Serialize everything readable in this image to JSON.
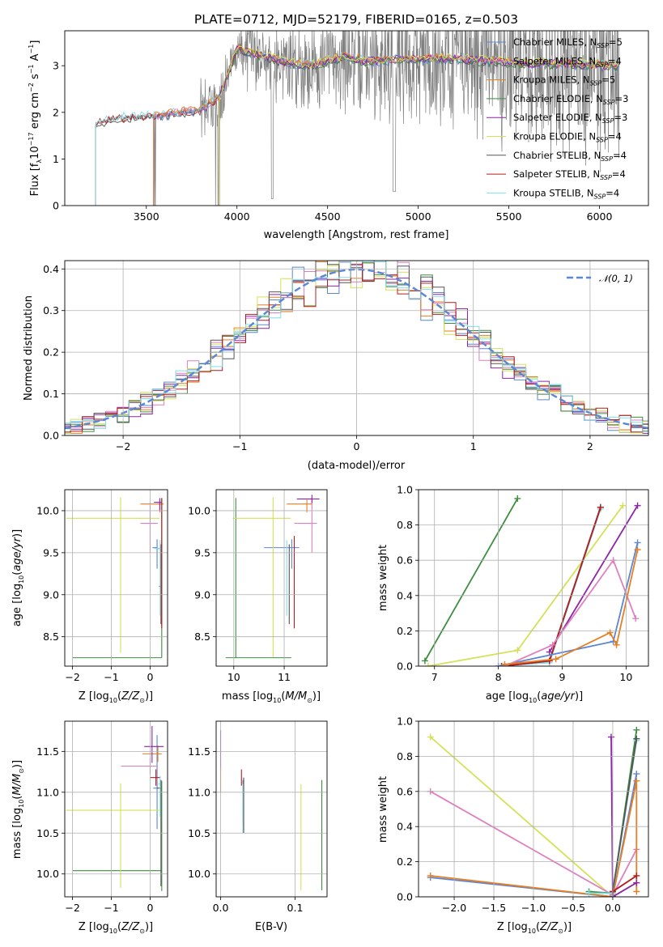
{
  "figure_title": "PLATE=0712, MJD=52179, FIBERID=0165, z=0.503",
  "colors": {
    "Chabrier MILES": "#5b86d6",
    "Salpeter MILES": "#df7fbf",
    "Kroupa MILES": "#e67e22",
    "Chabrier ELODIE": "#3e8e41",
    "Salpeter ELODIE": "#8e24aa",
    "Kroupa ELODIE": "#d4e157",
    "Chabrier STELIB": "#555555",
    "Salpeter STELIB": "#b71c1c",
    "Kroupa STELIB": "#80deea",
    "observed": "#808080",
    "normal": "#5b86d6"
  },
  "chart_data": [
    {
      "id": "spectrum",
      "type": "line",
      "title": "PLATE=0712, MJD=52179, FIBERID=0165, z=0.503",
      "xlabel": "wavelength [Angstrom, rest frame]",
      "ylabel": "Flux [f_λ 10^-17 erg cm^-2 s^-1 A^-1]",
      "xlim": [
        3050,
        6270
      ],
      "ylim": [
        0,
        3.75
      ],
      "xticks": [
        3500,
        4000,
        4500,
        5000,
        5500,
        6000
      ],
      "yticks": [
        0,
        1,
        2,
        3
      ],
      "legend_position": "upper right",
      "grid": false,
      "legend": [
        {
          "name": "Chabrier MILES",
          "nssp": 5
        },
        {
          "name": "Salpeter MILES",
          "nssp": 4
        },
        {
          "name": "Kroupa MILES",
          "nssp": 5
        },
        {
          "name": "Chabrier ELODIE",
          "nssp": 3
        },
        {
          "name": "Salpeter ELODIE",
          "nssp": 3
        },
        {
          "name": "Kroupa ELODIE",
          "nssp": 4
        },
        {
          "name": "Chabrier STELIB",
          "nssp": 4
        },
        {
          "name": "Salpeter STELIB",
          "nssp": 4
        },
        {
          "name": "Kroupa STELIB",
          "nssp": 4
        }
      ],
      "legend_suffix": "N_SSP=",
      "continuum": {
        "x": [
          3220,
          3300,
          3400,
          3500,
          3600,
          3700,
          3800,
          3900,
          4000,
          4100,
          4200,
          4300,
          4400,
          4500,
          4600,
          4700,
          4800,
          4900,
          5000,
          5200,
          5400,
          5600,
          5800,
          6000,
          6100
        ],
        "y": [
          1.75,
          1.85,
          1.9,
          1.9,
          1.95,
          2.0,
          2.05,
          2.3,
          3.35,
          3.25,
          3.15,
          3.05,
          3.0,
          3.1,
          3.2,
          3.1,
          3.1,
          3.15,
          3.15,
          3.15,
          3.1,
          3.05,
          3.05,
          3.0,
          3.0
        ]
      },
      "model_starts": {
        "Chabrier MILES": 3540,
        "Salpeter MILES": 3540,
        "Kroupa MILES": 3540,
        "Chabrier ELODIE": 3905,
        "Salpeter ELODIE": 3905,
        "Kroupa ELODIE": 3905,
        "Chabrier STELIB": 3220,
        "Salpeter STELIB": 3220,
        "Kroupa STELIB": 3220
      }
    },
    {
      "id": "residuals",
      "type": "histogram",
      "xlabel": "(data-model)/error",
      "ylabel": "Normed distribution",
      "xlim": [
        -2.5,
        2.5
      ],
      "ylim": [
        0,
        0.42
      ],
      "xticks": [
        -2,
        -1,
        0,
        1,
        2
      ],
      "yticks": [
        0.0,
        0.1,
        0.2,
        0.3,
        0.4
      ],
      "grid": true,
      "bin_width": 0.1,
      "reference": {
        "label": "𝒩(0, 1)",
        "mean": 0,
        "sigma": 1
      },
      "legend_position": "upper right"
    },
    {
      "id": "age_vs_Z",
      "type": "errorbar",
      "xlabel": "Z [log10(Z/Z⊙)]",
      "ylabel": "age [log10(age/yr)]",
      "xlim": [
        -2.2,
        0.45
      ],
      "ylim": [
        8.15,
        10.25
      ],
      "xticks": [
        -2,
        -1,
        0
      ],
      "yticks": [
        8.5,
        9.0,
        9.5,
        10.0
      ],
      "grid": true,
      "points": [
        {
          "model": "Chabrier MILES",
          "x": 0.18,
          "y": 9.56,
          "xerr": [
            0.12,
            0.0
          ],
          "yerr": [
            0.25,
            0.1
          ]
        },
        {
          "model": "Salpeter MILES",
          "x": 0.0,
          "y": 9.85,
          "xerr": [
            0.25,
            0.2
          ],
          "yerr": [
            0.35,
            0.25
          ]
        },
        {
          "model": "Kroupa MILES",
          "x": 0.25,
          "y": 10.08,
          "xerr": [
            0.5,
            0.1
          ],
          "yerr": [
            0.1,
            0.05
          ]
        },
        {
          "model": "Chabrier ELODIE",
          "x": 0.3,
          "y": 8.25,
          "xerr": [
            2.3,
            0.0
          ],
          "yerr": [
            0.0,
            1.9
          ]
        },
        {
          "model": "Salpeter ELODIE",
          "x": 0.25,
          "y": 10.1,
          "xerr": [
            0.15,
            0.05
          ],
          "yerr": [
            0.1,
            0.05
          ]
        },
        {
          "model": "Kroupa ELODIE",
          "x": -0.76,
          "y": 9.91,
          "xerr": [
            1.4,
            1.0
          ],
          "yerr": [
            1.6,
            0.25
          ]
        },
        {
          "model": "Chabrier STELIB",
          "x": 0.28,
          "y": 9.1,
          "xerr": [
            0.05,
            0.0
          ],
          "yerr": [
            0.45,
            0.5
          ]
        },
        {
          "model": "Salpeter STELIB",
          "x": 0.3,
          "y": 9.55,
          "xerr": [
            0.1,
            0.0
          ],
          "yerr": [
            0.95,
            0.6
          ]
        },
        {
          "model": "Kroupa STELIB",
          "x": 0.26,
          "y": 9.55,
          "xerr": [
            0.15,
            0.02
          ],
          "yerr": [
            0.8,
            0.1
          ]
        }
      ]
    },
    {
      "id": "age_vs_mass",
      "type": "errorbar",
      "xlabel": "mass [log10(M/M⊙)]",
      "ylabel": "",
      "xlim": [
        9.65,
        11.85
      ],
      "ylim": [
        8.15,
        10.25
      ],
      "xticks": [
        10,
        11
      ],
      "yticks": [
        8.5,
        9.0,
        9.5,
        10.0
      ],
      "grid": true,
      "points": [
        {
          "model": "Chabrier MILES",
          "x": 11.15,
          "y": 9.56,
          "xerr": [
            0.55,
            0.15
          ],
          "yerr": [
            0.25,
            0.1
          ]
        },
        {
          "model": "Salpeter MILES",
          "x": 11.55,
          "y": 9.85,
          "xerr": [
            0.35,
            0.1
          ],
          "yerr": [
            0.35,
            0.3
          ]
        },
        {
          "model": "Kroupa MILES",
          "x": 11.45,
          "y": 10.08,
          "xerr": [
            0.4,
            0.1
          ],
          "yerr": [
            0.1,
            0.05
          ]
        },
        {
          "model": "Chabrier ELODIE",
          "x": 10.04,
          "y": 8.25,
          "xerr": [
            0.2,
            1.1
          ],
          "yerr": [
            0.0,
            1.9
          ]
        },
        {
          "model": "Salpeter ELODIE",
          "x": 11.55,
          "y": 10.14,
          "xerr": [
            0.3,
            0.15
          ],
          "yerr": [
            0.05,
            0.05
          ]
        },
        {
          "model": "Kroupa ELODIE",
          "x": 10.78,
          "y": 9.91,
          "xerr": [
            0.8,
            0.35
          ],
          "yerr": [
            1.65,
            0.25
          ]
        },
        {
          "model": "Chabrier STELIB",
          "x": 11.1,
          "y": 9.1,
          "xerr": [
            0.0,
            0.0
          ],
          "yerr": [
            0.45,
            0.5
          ]
        },
        {
          "model": "Salpeter STELIB",
          "x": 11.2,
          "y": 9.55,
          "xerr": [
            0.0,
            0.0
          ],
          "yerr": [
            0.95,
            0.15
          ]
        },
        {
          "model": "Kroupa STELIB",
          "x": 11.05,
          "y": 9.55,
          "xerr": [
            0.0,
            0.0
          ],
          "yerr": [
            0.8,
            0.1
          ]
        }
      ]
    },
    {
      "id": "weight_vs_age",
      "type": "line",
      "xlabel": "age [log10(age/yr)]",
      "ylabel": "mass weight",
      "xlim": [
        6.75,
        10.35
      ],
      "ylim": [
        0,
        1.0
      ],
      "xticks": [
        7,
        8,
        9,
        10
      ],
      "yticks": [
        0.0,
        0.2,
        0.4,
        0.6,
        0.8,
        1.0
      ],
      "grid": true,
      "series": [
        {
          "model": "Chabrier ELODIE",
          "x": [
            6.85,
            8.3
          ],
          "y": [
            0.03,
            0.95
          ]
        },
        {
          "model": "Kroupa ELODIE",
          "x": [
            6.9,
            8.3,
            9.95
          ],
          "y": [
            0.0,
            0.09,
            0.91
          ]
        },
        {
          "model": "Salpeter ELODIE",
          "x": [
            8.8,
            10.18
          ],
          "y": [
            0.08,
            0.91
          ]
        },
        {
          "model": "Kroupa STELIB",
          "x": [
            8.0,
            8.8,
            9.6
          ],
          "y": [
            0.0,
            0.02,
            0.89
          ]
        },
        {
          "model": "Chabrier STELIB",
          "x": [
            8.05,
            8.8,
            9.6
          ],
          "y": [
            0.0,
            0.03,
            0.9
          ]
        },
        {
          "model": "Salpeter STELIB",
          "x": [
            8.05,
            8.8,
            9.6
          ],
          "y": [
            0.0,
            0.03,
            0.9
          ]
        },
        {
          "model": "Chabrier MILES",
          "x": [
            8.0,
            9.8,
            10.18
          ],
          "y": [
            0.0,
            0.14,
            0.7
          ]
        },
        {
          "model": "Salpeter MILES",
          "x": [
            8.1,
            8.85,
            9.8,
            10.15
          ],
          "y": [
            0.0,
            0.12,
            0.6,
            0.27
          ]
        },
        {
          "model": "Kroupa MILES",
          "x": [
            8.1,
            8.9,
            9.75,
            9.85,
            10.18
          ],
          "y": [
            0.01,
            0.04,
            0.19,
            0.12,
            0.66
          ]
        }
      ]
    },
    {
      "id": "mass_vs_Z",
      "type": "errorbar",
      "xlabel": "Z [log10(Z/Z⊙)]",
      "ylabel": "mass [log10(M/M⊙)]",
      "xlim": [
        -2.2,
        0.45
      ],
      "ylim": [
        9.72,
        11.87
      ],
      "xticks": [
        -2,
        -1,
        0
      ],
      "yticks": [
        10.0,
        10.5,
        11.0,
        11.5
      ],
      "grid": true,
      "points": [
        {
          "model": "Chabrier MILES",
          "x": 0.18,
          "y": 11.05,
          "xerr": [
            0.1,
            0.0
          ],
          "yerr": [
            0.5,
            0.65
          ]
        },
        {
          "model": "Salpeter MILES",
          "x": 0.0,
          "y": 11.32,
          "xerr": [
            0.75,
            0.2
          ],
          "yerr": [
            0.1,
            0.1
          ]
        },
        {
          "model": "Kroupa MILES",
          "x": 0.2,
          "y": 11.47,
          "xerr": [
            0.4,
            0.1
          ],
          "yerr": [
            0.1,
            0.1
          ]
        },
        {
          "model": "Chabrier ELODIE",
          "x": 0.3,
          "y": 10.04,
          "xerr": [
            2.3,
            0.0
          ],
          "yerr": [
            0.25,
            1.1
          ]
        },
        {
          "model": "Salpeter ELODIE",
          "x": 0.05,
          "y": 11.56,
          "xerr": [
            0.2,
            0.3
          ],
          "yerr": [
            0.2,
            0.25
          ]
        },
        {
          "model": "Kroupa ELODIE",
          "x": -0.76,
          "y": 10.78,
          "xerr": [
            1.4,
            1.0
          ],
          "yerr": [
            0.95,
            0.33
          ]
        },
        {
          "model": "Chabrier STELIB",
          "x": 0.28,
          "y": 11.05,
          "xerr": [
            0.1,
            0.0
          ],
          "yerr": [
            1.2,
            0.1
          ]
        },
        {
          "model": "Salpeter STELIB",
          "x": 0.15,
          "y": 11.18,
          "xerr": [
            0.15,
            0.1
          ],
          "yerr": [
            0.1,
            0.1
          ]
        },
        {
          "model": "Kroupa STELIB",
          "x": 0.26,
          "y": 11.1,
          "xerr": [
            0.05,
            0.0
          ],
          "yerr": [
            0.4,
            0.1
          ]
        }
      ]
    },
    {
      "id": "mass_vs_ebv",
      "type": "errorbar",
      "xlabel": "E(B-V)",
      "ylabel": "",
      "xlim": [
        -0.006,
        0.143
      ],
      "ylim": [
        9.72,
        11.87
      ],
      "xticks": [
        0.0,
        0.1
      ],
      "yticks": [
        10.0,
        10.5,
        11.0,
        11.5
      ],
      "grid": true,
      "points": [
        {
          "model": "Salpeter ELODIE",
          "x": 0.0,
          "y": 11.56,
          "xerr": [
            0,
            0
          ],
          "yerr": [
            0.3,
            0.2
          ]
        },
        {
          "model": "Kroupa MILES",
          "x": 0.0,
          "y": 11.2,
          "xerr": [
            0,
            0
          ],
          "yerr": [
            0.2,
            0.1
          ]
        },
        {
          "model": "Salpeter STELIB",
          "x": 0.028,
          "y": 11.18,
          "xerr": [
            0,
            0
          ],
          "yerr": [
            0.1,
            0.1
          ]
        },
        {
          "model": "Chabrier MILES",
          "x": 0.03,
          "y": 11.0,
          "xerr": [
            0,
            0
          ],
          "yerr": [
            0.4,
            0.15
          ]
        },
        {
          "model": "Kroupa STELIB",
          "x": 0.03,
          "y": 11.0,
          "xerr": [
            0,
            0
          ],
          "yerr": [
            0.5,
            0.1
          ]
        },
        {
          "model": "Chabrier STELIB",
          "x": 0.031,
          "y": 10.9,
          "xerr": [
            0,
            0
          ],
          "yerr": [
            0.4,
            0.28
          ]
        },
        {
          "model": "Kroupa ELODIE",
          "x": 0.108,
          "y": 10.5,
          "xerr": [
            0,
            0
          ],
          "yerr": [
            0.7,
            0.6
          ]
        },
        {
          "model": "Chabrier ELODIE",
          "x": 0.136,
          "y": 10.5,
          "xerr": [
            0,
            0
          ],
          "yerr": [
            0.7,
            0.65
          ]
        }
      ]
    },
    {
      "id": "weight_vs_Z",
      "type": "line",
      "xlabel": "Z [log10(Z/Z⊙)]",
      "ylabel": "mass weight",
      "xlim": [
        -2.45,
        0.45
      ],
      "ylim": [
        0,
        1.0
      ],
      "xticks": [
        -2.0,
        -1.5,
        -1.0,
        -0.5,
        0.0
      ],
      "yticks": [
        0.0,
        0.2,
        0.4,
        0.6,
        0.8,
        1.0
      ],
      "grid": true,
      "series": [
        {
          "model": "Kroupa ELODIE",
          "x": [
            -2.3,
            0.0,
            0.3
          ],
          "y": [
            0.91,
            0.0,
            0.08
          ]
        },
        {
          "model": "Salpeter MILES",
          "x": [
            -2.3,
            0.0,
            0.3
          ],
          "y": [
            0.6,
            0.01,
            0.27
          ]
        },
        {
          "model": "Chabrier MILES",
          "x": [
            -2.3,
            0.0,
            0.3
          ],
          "y": [
            0.11,
            0.0,
            0.7
          ]
        },
        {
          "model": "Kroupa MILES",
          "x": [
            -2.3,
            0.0,
            0.3,
            0.3
          ],
          "y": [
            0.12,
            0.0,
            0.66,
            0.03
          ]
        },
        {
          "model": "Salpeter ELODIE",
          "x": [
            -0.02,
            0.0,
            0.3
          ],
          "y": [
            0.91,
            0.0,
            0.08
          ]
        },
        {
          "model": "Chabrier ELODIE",
          "x": [
            -0.3,
            0.0,
            0.3
          ],
          "y": [
            0.03,
            0.02,
            0.95
          ]
        },
        {
          "model": "Kroupa STELIB",
          "x": [
            -0.3,
            0.0,
            0.3
          ],
          "y": [
            0.02,
            0.02,
            0.89
          ]
        },
        {
          "model": "Chabrier STELIB",
          "x": [
            0.0,
            0.3
          ],
          "y": [
            0.03,
            0.9
          ]
        },
        {
          "model": "Salpeter STELIB",
          "x": [
            0.0,
            0.3
          ],
          "y": [
            0.03,
            0.12
          ]
        }
      ]
    }
  ]
}
